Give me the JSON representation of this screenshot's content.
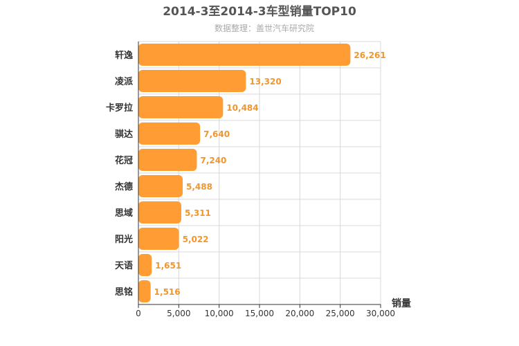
{
  "colors": {
    "bar": "#ff9c33",
    "data_label": "#f0962f"
  },
  "chart_data": {
    "type": "bar",
    "orientation": "horizontal",
    "title": "2014-3至2014-3车型销量TOP10",
    "subtitle": "数据整理：盖世汽车研究院",
    "xlabel": "销量",
    "ylabel": "",
    "categories": [
      "轩逸",
      "凌派",
      "卡罗拉",
      "骐达",
      "花冠",
      "杰德",
      "思域",
      "阳光",
      "天语",
      "思铭"
    ],
    "values": [
      26261,
      13320,
      10484,
      7640,
      7240,
      5488,
      5311,
      5022,
      1651,
      1516
    ],
    "value_labels": [
      "26,261",
      "13,320",
      "10,484",
      "7,640",
      "7,240",
      "5,488",
      "5,311",
      "5,022",
      "1,651",
      "1,516"
    ],
    "xlim": [
      0,
      30000
    ],
    "ticks": [
      0,
      5000,
      10000,
      15000,
      20000,
      25000,
      30000
    ],
    "tick_labels": [
      "0",
      "5,000",
      "10,000",
      "15,000",
      "20,000",
      "25,000",
      "30,000"
    ],
    "grid": true,
    "legend": "none"
  }
}
